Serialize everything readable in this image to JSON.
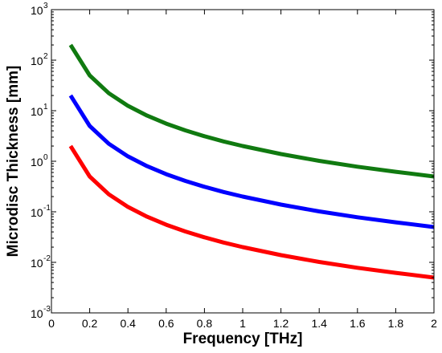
{
  "chart_data": {
    "type": "line",
    "title": "",
    "xlabel": "Frequency [THz]",
    "ylabel": "Microdisc Thickness [mm]",
    "xlim": [
      0,
      2
    ],
    "ylim": [
      0.001,
      1000
    ],
    "yscale": "log",
    "grid": false,
    "x_ticks": [
      0,
      0.2,
      0.4,
      0.6,
      0.8,
      1,
      1.2,
      1.4,
      1.6,
      1.8,
      2
    ],
    "x_tick_labels": [
      "0",
      "0.2",
      "0.4",
      "0.6",
      "0.8",
      "1",
      "1.2",
      "1.4",
      "1.6",
      "1.8",
      "2"
    ],
    "y_ticks": [
      {
        "value": 0.001,
        "base": "10",
        "exp": "-3"
      },
      {
        "value": 0.01,
        "base": "10",
        "exp": "-2"
      },
      {
        "value": 0.1,
        "base": "10",
        "exp": "-1"
      },
      {
        "value": 1,
        "base": "10",
        "exp": "0"
      },
      {
        "value": 10,
        "base": "10",
        "exp": "1"
      },
      {
        "value": 100,
        "base": "10",
        "exp": "2"
      },
      {
        "value": 1000,
        "base": "10",
        "exp": "3"
      }
    ],
    "x": [
      0.1,
      0.2,
      0.3,
      0.4,
      0.5,
      0.6,
      0.7,
      0.8,
      0.9,
      1.0,
      1.2,
      1.4,
      1.6,
      1.8,
      2.0
    ],
    "series": [
      {
        "color": "#107a10",
        "values": [
          200,
          50,
          22.2,
          12.5,
          8.0,
          5.56,
          4.08,
          3.13,
          2.47,
          2.0,
          1.39,
          1.02,
          0.78,
          0.62,
          0.5
        ]
      },
      {
        "color": "#0000ff",
        "values": [
          20,
          5.0,
          2.22,
          1.25,
          0.8,
          0.556,
          0.408,
          0.313,
          0.247,
          0.2,
          0.139,
          0.102,
          0.078,
          0.062,
          0.05
        ]
      },
      {
        "color": "#ff0000",
        "values": [
          2.0,
          0.5,
          0.222,
          0.125,
          0.08,
          0.0556,
          0.0408,
          0.0313,
          0.0247,
          0.02,
          0.0139,
          0.0102,
          0.0078,
          0.0062,
          0.005
        ]
      }
    ]
  }
}
